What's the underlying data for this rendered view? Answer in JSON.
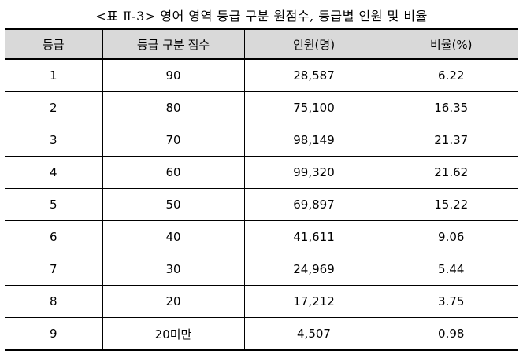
{
  "caption": "<표 Ⅱ-3> 영어 영역 등급 구분 원점수, 등급별 인원 및 비율",
  "table": {
    "headers": [
      "등급",
      "등급 구분 점수",
      "인원(명)",
      "비율(%)"
    ],
    "rows": [
      [
        "1",
        "90",
        "28,587",
        "6.22"
      ],
      [
        "2",
        "80",
        "75,100",
        "16.35"
      ],
      [
        "3",
        "70",
        "98,149",
        "21.37"
      ],
      [
        "4",
        "60",
        "99,320",
        "21.62"
      ],
      [
        "5",
        "50",
        "69,897",
        "15.22"
      ],
      [
        "6",
        "40",
        "41,611",
        "9.06"
      ],
      [
        "7",
        "30",
        "24,969",
        "5.44"
      ],
      [
        "8",
        "20",
        "17,212",
        "3.75"
      ],
      [
        "9",
        "20미만",
        "4,507",
        "0.98"
      ]
    ]
  },
  "colors": {
    "header_background": "#d9d9d9",
    "border": "#000000"
  }
}
